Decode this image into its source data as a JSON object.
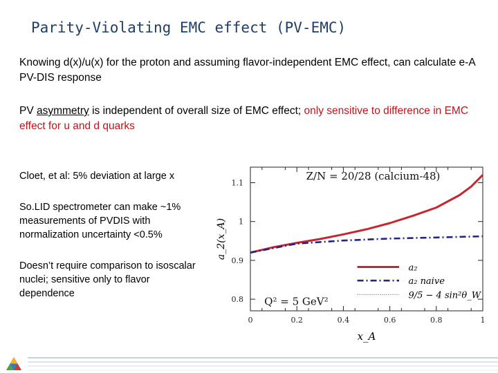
{
  "slide": {
    "title": "Parity-Violating EMC effect (PV-EMC)",
    "para1": "Knowing d(x)/u(x) for the proton and assuming flavor-independent EMC effect, can calculate e-A PV-DIS response",
    "para2_a": "PV ",
    "para2_b": "asymmetry",
    "para2_c": " is independent of overall size of EMC effect; ",
    "para2_red": "only sensitive to difference in EMC effect for u and d quarks",
    "side1": "Cloet, et al: 5% deviation at large x",
    "side2": "So.LID spectrometer can make ~1% measurements of PVDIS with normalization uncertainty <0.5%",
    "side3": "Doesn’t require comparison to isoscalar nuclei; sensitive only to flavor dependence"
  },
  "chart_data": {
    "type": "line",
    "xlabel": "x_A",
    "ylabel": "a_2(x_A)",
    "xlim": [
      0,
      1
    ],
    "ylim": [
      0.77,
      1.14
    ],
    "xticks": [
      "0",
      "0.2",
      "0.4",
      "0.6",
      "0.8",
      "1"
    ],
    "yticks": [
      "0.8",
      "0.9",
      "1",
      "1.1"
    ],
    "annotation_top": "Z/N = 20/28  (calcium-48)",
    "annotation_bottom": "Q² = 5 GeV²",
    "legend": [
      "a₂",
      "a₂ naive",
      "9/5 − 4 sin²θ_W"
    ],
    "colors": {
      "a2": "#c8262e",
      "naive": "#23238a"
    },
    "series": [
      {
        "name": "a₂",
        "x": [
          0.0,
          0.1,
          0.2,
          0.3,
          0.4,
          0.5,
          0.6,
          0.7,
          0.8,
          0.9,
          0.95,
          1.0
        ],
        "y": [
          0.92,
          0.934,
          0.945,
          0.955,
          0.967,
          0.98,
          0.996,
          1.015,
          1.036,
          1.068,
          1.09,
          1.12
        ]
      },
      {
        "name": "a₂ naive",
        "x": [
          0.0,
          0.2,
          0.4,
          0.6,
          0.8,
          1.0
        ],
        "y": [
          0.92,
          0.943,
          0.951,
          0.956,
          0.959,
          0.962
        ]
      }
    ]
  }
}
